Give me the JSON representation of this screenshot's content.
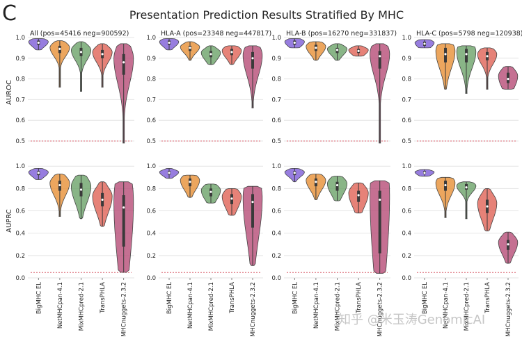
{
  "panel_letter": "C",
  "suptitle": "Presentation Prediction Results Stratified By MHC",
  "watermark": "知乎 @米玉涛GenomicAI",
  "colors": {
    "BigMHC EL": "#8060d8",
    "NetMHCpan-4.1": "#e8923a",
    "MixMHCpred-2.1": "#6fa56c",
    "TransPHLA": "#e0665a",
    "MHCnuggets-2.3.2": "#b8507a",
    "baseline": "#d9606e",
    "grid": "#e4e4e4"
  },
  "chart_data": {
    "type": "violin",
    "methods": [
      "BigMHC EL",
      "NetMHCpan-4.1",
      "MixMHCpred-2.1",
      "TransPHLA",
      "MHCnuggets-2.3.2"
    ],
    "groups": [
      {
        "title": "All (pos=45416 neg=900592)"
      },
      {
        "title": "HLA-A (pos=23348 neg=447817)"
      },
      {
        "title": "HLA-B (pos=16270 neg=331837)"
      },
      {
        "title": "HLA-C (pos=5798 neg=120938)"
      }
    ],
    "rows": [
      {
        "ylabel": "AUROC",
        "ylim": [
          0.47,
          1.0
        ],
        "yticks": [
          0.5,
          0.6,
          0.7,
          0.8,
          0.9,
          1.0
        ],
        "ytick_labels": [
          "0.5",
          "0.6",
          "0.7",
          "0.8",
          "0.9",
          "1.0"
        ],
        "baseline": 0.5,
        "panels": [
          {
            "violins": [
              {
                "min": 0.94,
                "max": 0.995,
                "median": 0.975,
                "q1": 0.965,
                "q3": 0.985
              },
              {
                "min": 0.76,
                "max": 0.985,
                "median": 0.945,
                "q1": 0.925,
                "q3": 0.96
              },
              {
                "min": 0.74,
                "max": 0.98,
                "median": 0.93,
                "q1": 0.91,
                "q3": 0.95
              },
              {
                "min": 0.76,
                "max": 0.97,
                "median": 0.92,
                "q1": 0.9,
                "q3": 0.94
              },
              {
                "min": 0.49,
                "max": 0.97,
                "median": 0.88,
                "q1": 0.82,
                "q3": 0.92
              }
            ]
          },
          {
            "violins": [
              {
                "min": 0.94,
                "max": 0.995,
                "median": 0.975,
                "q1": 0.965,
                "q3": 0.985
              },
              {
                "min": 0.89,
                "max": 0.98,
                "median": 0.95,
                "q1": 0.935,
                "q3": 0.96
              },
              {
                "min": 0.87,
                "max": 0.96,
                "median": 0.92,
                "q1": 0.905,
                "q3": 0.935
              },
              {
                "min": 0.87,
                "max": 0.96,
                "median": 0.93,
                "q1": 0.915,
                "q3": 0.945
              },
              {
                "min": 0.66,
                "max": 0.96,
                "median": 0.9,
                "q1": 0.85,
                "q3": 0.93
              }
            ]
          },
          {
            "violins": [
              {
                "min": 0.95,
                "max": 0.995,
                "median": 0.975,
                "q1": 0.965,
                "q3": 0.985
              },
              {
                "min": 0.89,
                "max": 0.98,
                "median": 0.95,
                "q1": 0.935,
                "q3": 0.965
              },
              {
                "min": 0.89,
                "max": 0.97,
                "median": 0.94,
                "q1": 0.925,
                "q3": 0.95
              },
              {
                "min": 0.91,
                "max": 0.96,
                "median": 0.935,
                "q1": 0.925,
                "q3": 0.945
              },
              {
                "min": 0.49,
                "max": 0.97,
                "median": 0.91,
                "q1": 0.85,
                "q3": 0.935
              }
            ]
          },
          {
            "violins": [
              {
                "min": 0.95,
                "max": 0.99,
                "median": 0.97,
                "q1": 0.96,
                "q3": 0.98
              },
              {
                "min": 0.75,
                "max": 0.97,
                "median": 0.92,
                "q1": 0.88,
                "q3": 0.95
              },
              {
                "min": 0.73,
                "max": 0.96,
                "median": 0.92,
                "q1": 0.88,
                "q3": 0.945
              },
              {
                "min": 0.75,
                "max": 0.95,
                "median": 0.91,
                "q1": 0.89,
                "q3": 0.93
              },
              {
                "min": 0.75,
                "max": 0.86,
                "median": 0.8,
                "q1": 0.78,
                "q3": 0.83
              }
            ]
          }
        ]
      },
      {
        "ylabel": "AUPRC",
        "ylim": [
          0.0,
          1.02
        ],
        "yticks": [
          0.0,
          0.2,
          0.4,
          0.6,
          0.8,
          1.0
        ],
        "ytick_labels": [
          "0.0",
          "0.2",
          "0.4",
          "0.6",
          "0.8",
          "1.0"
        ],
        "baseline": 0.048,
        "panels": [
          {
            "violins": [
              {
                "min": 0.88,
                "max": 0.98,
                "median": 0.94,
                "q1": 0.92,
                "q3": 0.955
              },
              {
                "min": 0.55,
                "max": 0.93,
                "median": 0.83,
                "q1": 0.78,
                "q3": 0.87
              },
              {
                "min": 0.53,
                "max": 0.92,
                "median": 0.79,
                "q1": 0.73,
                "q3": 0.85
              },
              {
                "min": 0.46,
                "max": 0.86,
                "median": 0.7,
                "q1": 0.64,
                "q3": 0.76
              },
              {
                "min": 0.05,
                "max": 0.86,
                "median": 0.63,
                "q1": 0.28,
                "q3": 0.74
              }
            ]
          },
          {
            "violins": [
              {
                "min": 0.89,
                "max": 0.98,
                "median": 0.94,
                "q1": 0.925,
                "q3": 0.955
              },
              {
                "min": 0.72,
                "max": 0.92,
                "median": 0.86,
                "q1": 0.82,
                "q3": 0.89
              },
              {
                "min": 0.67,
                "max": 0.84,
                "median": 0.77,
                "q1": 0.73,
                "q3": 0.8
              },
              {
                "min": 0.56,
                "max": 0.8,
                "median": 0.71,
                "q1": 0.66,
                "q3": 0.75
              },
              {
                "min": 0.11,
                "max": 0.82,
                "median": 0.68,
                "q1": 0.45,
                "q3": 0.75
              }
            ]
          },
          {
            "violins": [
              {
                "min": 0.86,
                "max": 0.98,
                "median": 0.94,
                "q1": 0.92,
                "q3": 0.955
              },
              {
                "min": 0.7,
                "max": 0.93,
                "median": 0.86,
                "q1": 0.82,
                "q3": 0.89
              },
              {
                "min": 0.69,
                "max": 0.91,
                "median": 0.83,
                "q1": 0.78,
                "q3": 0.86
              },
              {
                "min": 0.58,
                "max": 0.85,
                "median": 0.74,
                "q1": 0.68,
                "q3": 0.78
              },
              {
                "min": 0.04,
                "max": 0.87,
                "median": 0.7,
                "q1": 0.22,
                "q3": 0.78
              }
            ]
          },
          {
            "violins": [
              {
                "min": 0.91,
                "max": 0.97,
                "median": 0.94,
                "q1": 0.93,
                "q3": 0.955
              },
              {
                "min": 0.54,
                "max": 0.9,
                "median": 0.83,
                "q1": 0.78,
                "q3": 0.87
              },
              {
                "min": 0.53,
                "max": 0.86,
                "median": 0.81,
                "q1": 0.79,
                "q3": 0.84
              },
              {
                "min": 0.42,
                "max": 0.8,
                "median": 0.64,
                "q1": 0.58,
                "q3": 0.7
              },
              {
                "min": 0.13,
                "max": 0.41,
                "median": 0.3,
                "q1": 0.25,
                "q3": 0.34
              }
            ]
          }
        ]
      }
    ]
  }
}
